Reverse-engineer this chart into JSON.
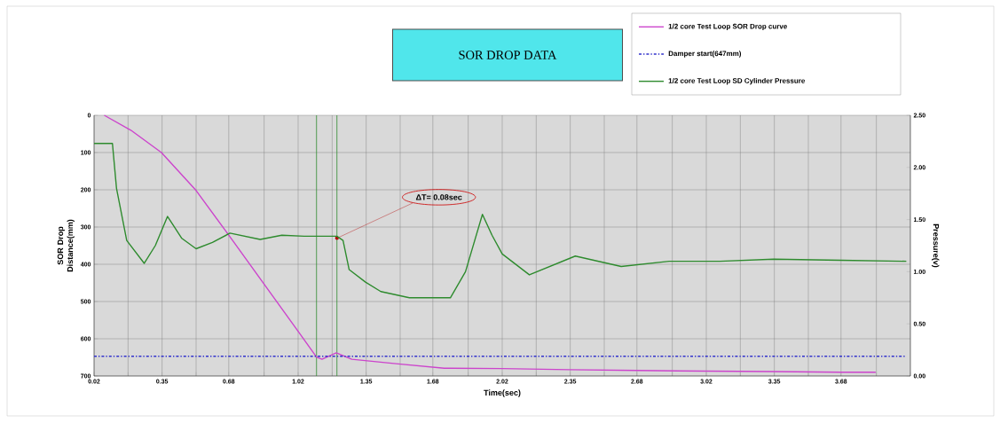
{
  "chart_data": {
    "type": "line",
    "title": "SOR DROP DATA",
    "xlabel": "Time(sec)",
    "ylabel": "SOR Drop Distance(mm)",
    "y2label": "Pressure(v)",
    "xlim": [
      0.02,
      4.02
    ],
    "xticks": [
      {
        "value": 0.02,
        "label": "0.02"
      },
      {
        "value": 0.1867,
        "label": null
      },
      {
        "value": 0.3533,
        "label": "0.35"
      },
      {
        "value": 0.52,
        "label": null
      },
      {
        "value": 0.68,
        "label": "0.68"
      },
      {
        "value": 0.8533,
        "label": null
      },
      {
        "value": 1.02,
        "label": "1.02"
      },
      {
        "value": 1.1867,
        "label": null
      },
      {
        "value": 1.3533,
        "label": "1.35"
      },
      {
        "value": 1.52,
        "label": null
      },
      {
        "value": 1.68,
        "label": "1.68"
      },
      {
        "value": 1.8533,
        "label": null
      },
      {
        "value": 2.02,
        "label": "2.02"
      },
      {
        "value": 2.1867,
        "label": null
      },
      {
        "value": 2.3533,
        "label": "2.35"
      },
      {
        "value": 2.52,
        "label": null
      },
      {
        "value": 2.68,
        "label": "2.68"
      },
      {
        "value": 2.8533,
        "label": null
      },
      {
        "value": 3.02,
        "label": "3.02"
      },
      {
        "value": 3.1867,
        "label": null
      },
      {
        "value": 3.3533,
        "label": "3.35"
      },
      {
        "value": 3.52,
        "label": null
      },
      {
        "value": 3.68,
        "label": "3.68"
      },
      {
        "value": 3.8533,
        "label": null
      },
      {
        "value": 4.02,
        "label": null
      }
    ],
    "ylim": [
      700,
      0
    ],
    "yticks": [
      0,
      100,
      200,
      300,
      400,
      500,
      600,
      700
    ],
    "y2lim": [
      0,
      2.5
    ],
    "y2ticks": [
      {
        "value": 0,
        "label": "0.00"
      },
      {
        "value": 0.5,
        "label": "0.50"
      },
      {
        "value": 1,
        "label": "1.00"
      },
      {
        "value": 1.5,
        "label": "1.50"
      },
      {
        "value": 2,
        "label": "2.00"
      },
      {
        "value": 2.5,
        "label": "2.50"
      }
    ],
    "grid": true,
    "legend": "top right",
    "marker": "none",
    "series": [
      {
        "name": "1/2 core Test Loop SOR Drop curve",
        "color": "#cc44cc",
        "line_style": "solid",
        "x": [
          0.07,
          0.2,
          0.35,
          0.52,
          0.695,
          0.85,
          1.02,
          1.11,
          1.137,
          1.207,
          1.283,
          1.5,
          1.736,
          2.02,
          2.35,
          2.68,
          3.02,
          3.35,
          3.68,
          3.85
        ],
        "values": [
          0,
          40,
          100,
          202,
          333,
          451,
          580,
          649,
          655,
          638,
          655,
          667,
          679,
          680,
          683,
          685,
          687,
          688,
          690,
          690
        ]
      },
      {
        "name": "Damper start(647mm)",
        "color": "#3333cc",
        "line_style": "dashdot",
        "x": [
          0.02,
          4.0
        ],
        "values": [
          647,
          647
        ]
      },
      {
        "name": "1/2 core Test Loop SD Cylinder Pressure",
        "color": "#2e8b2e",
        "line_style": "solid",
        "axis": "y2",
        "x": [
          0.02,
          0.11,
          0.13,
          0.18,
          0.266,
          0.32,
          0.38,
          0.45,
          0.52,
          0.6,
          0.686,
          0.834,
          0.94,
          1.05,
          1.176,
          1.21,
          1.24,
          1.27,
          1.35,
          1.425,
          1.565,
          1.766,
          1.84,
          1.923,
          1.97,
          2.02,
          2.153,
          2.378,
          2.603,
          2.838,
          3.086,
          3.35,
          3.68,
          4.0
        ],
        "values": [
          2.23,
          2.23,
          1.8,
          1.3,
          1.08,
          1.25,
          1.53,
          1.32,
          1.22,
          1.28,
          1.37,
          1.31,
          1.35,
          1.34,
          1.34,
          1.34,
          1.3,
          1.02,
          0.9,
          0.81,
          0.75,
          0.75,
          1.0,
          1.55,
          1.35,
          1.17,
          0.97,
          1.15,
          1.05,
          1.1,
          1.1,
          1.12,
          1.11,
          1.1
        ]
      }
    ],
    "ref_lines": [
      {
        "axis": "x",
        "value": 1.11,
        "color": "#2e8b2e"
      },
      {
        "axis": "x",
        "value": 1.21,
        "color": "#2e8b2e"
      }
    ],
    "annotations": [
      {
        "text": "ΔT= 0.08sec",
        "x": 1.21,
        "y": 330
      }
    ]
  }
}
